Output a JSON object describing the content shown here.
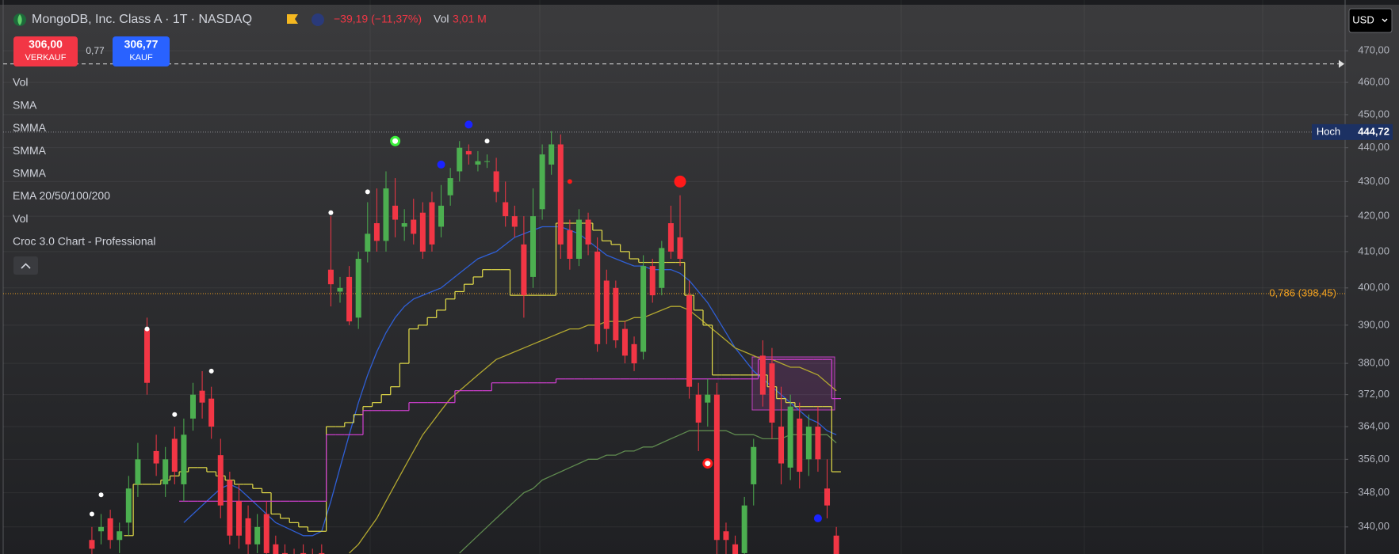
{
  "header": {
    "symbol": "MongoDB, Inc. Class A · 1T · NASDAQ",
    "change": "−39,19 (−11,37%)",
    "vol_label": "Vol",
    "vol_value": "3,01 M"
  },
  "trade": {
    "sell_price": "306,00",
    "sell_label": "VERKAUF",
    "spread": "0,77",
    "buy_price": "306,77",
    "buy_label": "KAUF"
  },
  "currency": "USD",
  "legend": [
    "Vol",
    "SMA",
    "SMMA",
    "SMMA",
    "SMMA",
    "EMA 20/50/100/200",
    "Vol",
    "Croc 3.0 Chart - Professional"
  ],
  "chart_data": {
    "type": "candlestick",
    "log_scale": true,
    "grid": true,
    "ylim": [
      333.8,
      486.5
    ],
    "yticks": [
      {
        "value": 470,
        "label": "470,00"
      },
      {
        "value": 460,
        "label": "460,00"
      },
      {
        "value": 450,
        "label": "450,00"
      },
      {
        "value": 440,
        "label": "440,00"
      },
      {
        "value": 430,
        "label": "430,00"
      },
      {
        "value": 420,
        "label": "420,00"
      },
      {
        "value": 410,
        "label": "410,00"
      },
      {
        "value": 400,
        "label": "400,00"
      },
      {
        "value": 390,
        "label": "390,00"
      },
      {
        "value": 380,
        "label": "380,00"
      },
      {
        "value": 372,
        "label": "372,00"
      },
      {
        "value": 364,
        "label": "364,00"
      },
      {
        "value": 356,
        "label": "356,00"
      },
      {
        "value": 348,
        "label": "348,00"
      },
      {
        "value": 340,
        "label": "340,00"
      }
    ],
    "up_color": "#4caf50",
    "down_color": "#f23645",
    "open": [
      337,
      339,
      342,
      337,
      341,
      350,
      389,
      358,
      350,
      361,
      350,
      366,
      373,
      371,
      357,
      351,
      346,
      342,
      336,
      343,
      336,
      334,
      333,
      334,
      333,
      334,
      405,
      399,
      403,
      392,
      410,
      418,
      413,
      423,
      417,
      419,
      421,
      424,
      417,
      426,
      433,
      439,
      435,
      436,
      433,
      424,
      420,
      412,
      403,
      422,
      435,
      441,
      416,
      408,
      419,
      410,
      402,
      400,
      389,
      385,
      383,
      406,
      400,
      418,
      414,
      398,
      372,
      370,
      372,
      339,
      336,
      334,
      350,
      382,
      380,
      364,
      354,
      366,
      356,
      364,
      349,
      338
    ],
    "high": [
      340,
      343,
      344,
      341,
      352,
      360,
      392,
      362,
      359,
      364,
      366,
      375,
      378,
      374,
      361,
      353,
      350,
      345,
      343,
      346,
      338,
      336,
      335,
      336,
      335,
      336,
      420,
      403,
      406,
      410,
      424,
      428,
      433,
      431,
      422,
      425,
      424,
      427,
      429,
      434,
      442,
      441,
      439,
      438,
      437,
      430,
      423,
      420,
      428,
      441,
      445,
      444,
      419,
      422,
      421,
      414,
      405,
      402,
      391,
      387,
      409,
      408,
      413,
      423,
      426,
      402,
      375,
      376,
      375,
      341,
      338,
      347,
      361,
      386,
      384,
      374,
      372,
      370,
      367,
      369,
      356,
      340
    ],
    "low": [
      333,
      336,
      335,
      334,
      338,
      347,
      372,
      352,
      347,
      350,
      346,
      363,
      366,
      361,
      342,
      336,
      335,
      333,
      334,
      332,
      331,
      330,
      329,
      330,
      330,
      331,
      395,
      396,
      390,
      389,
      407,
      410,
      410,
      414,
      413,
      412,
      408,
      410,
      414,
      423,
      430,
      435,
      433,
      434,
      424,
      417,
      414,
      392,
      400,
      419,
      432,
      408,
      405,
      406,
      409,
      383,
      385,
      384,
      380,
      378,
      381,
      396,
      398,
      408,
      406,
      371,
      358,
      364,
      333,
      333,
      331,
      332,
      345,
      369,
      361,
      350,
      351,
      349,
      352,
      353,
      342,
      328
    ],
    "close": [
      335,
      340,
      337,
      339,
      349,
      356,
      375,
      355,
      356,
      353,
      362,
      372,
      370,
      364,
      345,
      338,
      338,
      336,
      340,
      334,
      333,
      332,
      331,
      332,
      332,
      333,
      401,
      400,
      391,
      408,
      415,
      413,
      428,
      419,
      418,
      415,
      410,
      412,
      423,
      431,
      440,
      438,
      436,
      436,
      427,
      420,
      417,
      398,
      420,
      438,
      441,
      412,
      408,
      419,
      412,
      385,
      389,
      386,
      382,
      380,
      406,
      398,
      411,
      410,
      408,
      374,
      365,
      372,
      337,
      337,
      333,
      345,
      359,
      372,
      365,
      355,
      369,
      353,
      364,
      356,
      345,
      330
    ],
    "indicators": [
      {
        "color": "#2f5fd6",
        "step": false,
        "values": [
          null,
          null,
          null,
          null,
          null,
          null,
          null,
          null,
          null,
          null,
          341,
          343,
          345,
          347,
          349,
          350,
          349,
          347,
          345,
          343,
          341,
          340,
          339,
          338,
          338,
          339,
          346,
          354,
          362,
          370,
          377,
          383,
          388,
          392,
          395,
          397,
          398,
          399,
          400,
          402,
          404,
          406,
          408,
          409,
          410,
          412,
          414,
          415,
          416,
          417,
          417,
          417,
          416,
          415,
          413,
          411,
          409,
          408,
          407,
          406,
          406,
          405,
          405,
          405,
          404,
          402,
          399,
          396,
          392,
          388,
          384,
          381,
          378,
          376,
          374,
          372,
          370,
          368,
          366,
          365,
          363,
          362
        ]
      },
      {
        "color": "#b3a830",
        "step": false,
        "values": [
          null,
          null,
          null,
          null,
          null,
          null,
          null,
          null,
          null,
          null,
          null,
          null,
          null,
          null,
          null,
          null,
          null,
          null,
          null,
          null,
          null,
          null,
          null,
          null,
          null,
          null,
          null,
          null,
          334,
          336,
          339,
          342,
          346,
          350,
          354,
          358,
          362,
          365,
          368,
          371,
          373,
          375,
          377,
          379,
          381,
          382,
          383,
          384,
          385,
          386,
          387,
          388,
          389,
          389,
          390,
          390,
          391,
          391,
          391,
          392,
          392,
          393,
          394,
          395,
          395,
          394,
          392,
          390,
          388,
          386,
          384,
          383,
          382,
          381,
          381,
          380,
          379,
          379,
          378,
          377,
          375,
          373
        ]
      },
      {
        "color": "#5f8a4f",
        "step": false,
        "values": [
          null,
          null,
          null,
          null,
          null,
          null,
          null,
          null,
          null,
          null,
          null,
          null,
          null,
          null,
          null,
          null,
          null,
          null,
          null,
          null,
          null,
          null,
          null,
          null,
          null,
          null,
          null,
          null,
          null,
          null,
          null,
          null,
          null,
          null,
          null,
          null,
          null,
          null,
          null,
          null,
          334,
          336,
          338,
          340,
          342,
          344,
          346,
          348,
          349,
          351,
          352,
          353,
          354,
          355,
          356,
          356,
          357,
          357,
          358,
          358,
          359,
          359,
          360,
          361,
          362,
          363,
          363,
          363,
          363,
          363,
          362,
          362,
          362,
          361,
          361,
          361,
          362,
          362,
          362,
          362,
          362,
          360
        ]
      },
      {
        "color": "#e3dc48",
        "step": true,
        "values": [
          null,
          null,
          null,
          null,
          338,
          350,
          350,
          350,
          351,
          352,
          353,
          354,
          354,
          353,
          352,
          351,
          350,
          350,
          349,
          348,
          343,
          342,
          341,
          340,
          339,
          339,
          364,
          364,
          365,
          367,
          369,
          370,
          372,
          374,
          380,
          389,
          390,
          392,
          394,
          397,
          399,
          401,
          403,
          405,
          405,
          405,
          398,
          398,
          398,
          398,
          398,
          418,
          418,
          418,
          418,
          416,
          413,
          412,
          410,
          408,
          407,
          407,
          407,
          407,
          407,
          398,
          394,
          390,
          377,
          377,
          377,
          377,
          377,
          377,
          374,
          371,
          370,
          369,
          369,
          369,
          369,
          353
        ]
      },
      {
        "color": "#d23fd2",
        "step": true,
        "values": [
          null,
          null,
          null,
          null,
          null,
          null,
          null,
          null,
          null,
          null,
          346,
          346,
          346,
          346,
          346,
          346,
          346,
          346,
          346,
          346,
          346,
          346,
          346,
          346,
          346,
          346,
          362,
          362,
          362,
          362,
          368,
          368,
          368,
          368,
          368,
          370,
          370,
          370,
          370,
          370,
          373,
          373,
          373,
          373,
          375,
          375,
          375,
          375,
          375,
          375,
          375,
          376,
          376,
          376,
          376,
          376,
          376,
          376,
          376,
          376,
          376,
          376,
          376,
          376,
          376,
          376,
          376,
          376,
          376,
          376,
          376,
          376,
          376,
          381,
          381,
          381,
          381,
          381,
          381,
          381,
          381,
          371
        ]
      }
    ],
    "markers": [
      {
        "x": 0,
        "y": 343,
        "color": "#ffffff",
        "style": "dot"
      },
      {
        "x": 1,
        "y": 347.5,
        "color": "#ffffff",
        "style": "dot"
      },
      {
        "x": 6,
        "y": 389,
        "color": "#ffffff",
        "style": "dot"
      },
      {
        "x": 9,
        "y": 367,
        "color": "#ffffff",
        "style": "dot"
      },
      {
        "x": 13,
        "y": 378,
        "color": "#ffffff",
        "style": "dot"
      },
      {
        "x": 26,
        "y": 421,
        "color": "#ffffff",
        "style": "dot"
      },
      {
        "x": 30,
        "y": 427,
        "color": "#ffffff",
        "style": "dot"
      },
      {
        "x": 43,
        "y": 442,
        "color": "#ffffff",
        "style": "dot"
      },
      {
        "x": 33,
        "y": 442,
        "color": "#3cf03c",
        "style": "ring"
      },
      {
        "x": 38,
        "y": 435,
        "color": "#1a23ff",
        "style": "big"
      },
      {
        "x": 41,
        "y": 447,
        "color": "#1a23ff",
        "style": "big"
      },
      {
        "x": 79,
        "y": 342,
        "color": "#1a23ff",
        "style": "big"
      },
      {
        "x": 64,
        "y": 430,
        "color": "#ff1a1a",
        "style": "large"
      },
      {
        "x": 67,
        "y": 355,
        "color": "#ff1a1a",
        "style": "ring"
      },
      {
        "x": 52,
        "y": 430,
        "color": "#ff1a1a",
        "style": "dot"
      }
    ],
    "high_line": {
      "label": "Hoch",
      "value": 444.72,
      "value_label": "444,72"
    },
    "fib_line": {
      "value": 398.45,
      "label": "0,786 (398,45)"
    },
    "price_line": 465.8
  }
}
